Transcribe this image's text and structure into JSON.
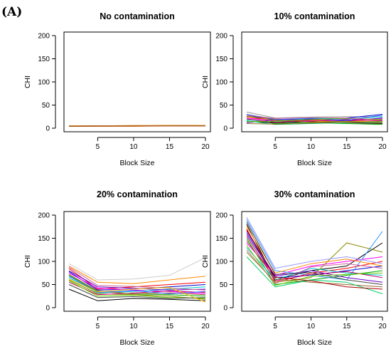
{
  "figure": {
    "label": "(A)"
  },
  "chart_data": [
    {
      "type": "line",
      "title": "No contamination",
      "xlabel": "Block Size",
      "ylabel": "CHI",
      "x": [
        1,
        5,
        10,
        15,
        20
      ],
      "xticks": [
        5,
        10,
        15,
        20
      ],
      "yticks": [
        0,
        50,
        100,
        150,
        200
      ],
      "ylim": [
        0,
        200
      ],
      "series": [
        {
          "color": "#000000",
          "values": [
            5,
            5,
            5,
            6,
            6
          ]
        },
        {
          "color": "#b8860b",
          "values": [
            4,
            4,
            5,
            5,
            5
          ]
        },
        {
          "color": "#cc6600",
          "values": [
            5,
            5,
            5,
            5,
            5
          ]
        },
        {
          "color": "#ff8c00",
          "values": [
            4,
            5,
            5,
            5,
            6
          ]
        },
        {
          "color": "#8b4513",
          "values": [
            5,
            5,
            5,
            6,
            5
          ]
        },
        {
          "color": "#d2691e",
          "values": [
            4,
            4,
            4,
            5,
            5
          ]
        },
        {
          "color": "#e69500",
          "values": [
            5,
            5,
            6,
            6,
            6
          ]
        },
        {
          "color": "#a0522d",
          "values": [
            4,
            5,
            5,
            5,
            5
          ]
        }
      ]
    },
    {
      "type": "line",
      "title": "10% contamination",
      "xlabel": "Block Size",
      "ylabel": "CHI",
      "x": [
        1,
        5,
        10,
        15,
        20
      ],
      "xticks": [
        5,
        10,
        15,
        20
      ],
      "yticks": [
        0,
        50,
        100,
        150,
        200
      ],
      "ylim": [
        0,
        200
      ],
      "series": [
        {
          "color": "#999999",
          "values": [
            35,
            22,
            24,
            25,
            24
          ]
        },
        {
          "color": "#0000cc",
          "values": [
            28,
            18,
            20,
            22,
            30
          ]
        },
        {
          "color": "#ff0000",
          "values": [
            25,
            15,
            18,
            16,
            18
          ]
        },
        {
          "color": "#00aa00",
          "values": [
            20,
            10,
            12,
            10,
            8
          ]
        },
        {
          "color": "#000000",
          "values": [
            15,
            12,
            14,
            12,
            10
          ]
        },
        {
          "color": "#ff00ff",
          "values": [
            22,
            16,
            15,
            18,
            20
          ]
        },
        {
          "color": "#00cccc",
          "values": [
            18,
            14,
            22,
            20,
            25
          ]
        },
        {
          "color": "#ff8800",
          "values": [
            24,
            20,
            16,
            14,
            15
          ]
        },
        {
          "color": "#6600cc",
          "values": [
            12,
            18,
            18,
            16,
            22
          ]
        },
        {
          "color": "#888800",
          "values": [
            26,
            17,
            13,
            15,
            12
          ]
        },
        {
          "color": "#00cc66",
          "values": [
            16,
            8,
            10,
            12,
            14
          ]
        },
        {
          "color": "#cc0066",
          "values": [
            20,
            13,
            17,
            19,
            16
          ]
        },
        {
          "color": "#3366ff",
          "values": [
            30,
            19,
            21,
            17,
            28
          ]
        },
        {
          "color": "#996633",
          "values": [
            10,
            9,
            11,
            13,
            11
          ]
        },
        {
          "color": "#66cc00",
          "values": [
            14,
            15,
            19,
            21,
            19
          ]
        },
        {
          "color": "#cc6699",
          "values": [
            28,
            21,
            23,
            22,
            17
          ]
        }
      ]
    },
    {
      "type": "line",
      "title": "20% contamination",
      "xlabel": "Block Size",
      "ylabel": "CHI",
      "x": [
        1,
        5,
        10,
        15,
        20
      ],
      "xticks": [
        5,
        10,
        15,
        20
      ],
      "yticks": [
        0,
        50,
        100,
        150,
        200
      ],
      "ylim": [
        0,
        200
      ],
      "series": [
        {
          "color": "#cccccc",
          "values": [
            95,
            60,
            62,
            70,
            108
          ]
        },
        {
          "color": "#ff8800",
          "values": [
            90,
            55,
            52,
            60,
            68
          ]
        },
        {
          "color": "#ff0000",
          "values": [
            85,
            40,
            45,
            50,
            55
          ]
        },
        {
          "color": "#0000cc",
          "values": [
            78,
            38,
            40,
            45,
            50
          ]
        },
        {
          "color": "#00aa00",
          "values": [
            70,
            35,
            30,
            28,
            25
          ]
        },
        {
          "color": "#000000",
          "values": [
            40,
            15,
            20,
            18,
            15
          ]
        },
        {
          "color": "#ff00ff",
          "values": [
            75,
            42,
            38,
            35,
            30
          ]
        },
        {
          "color": "#00cccc",
          "values": [
            65,
            32,
            35,
            40,
            45
          ]
        },
        {
          "color": "#888800",
          "values": [
            60,
            30,
            28,
            25,
            18
          ]
        },
        {
          "color": "#6600cc",
          "values": [
            80,
            45,
            42,
            38,
            40
          ]
        },
        {
          "color": "#cc0066",
          "values": [
            55,
            28,
            32,
            36,
            33
          ]
        },
        {
          "color": "#996633",
          "values": [
            72,
            36,
            30,
            32,
            28
          ]
        },
        {
          "color": "#3366ff",
          "values": [
            68,
            33,
            37,
            30,
            35
          ]
        },
        {
          "color": "#66cc00",
          "values": [
            58,
            25,
            27,
            22,
            20
          ]
        },
        {
          "color": "#cc6699",
          "values": [
            88,
            48,
            46,
            42,
            38
          ]
        },
        {
          "color": "#444444",
          "values": [
            50,
            22,
            24,
            20,
            22
          ]
        },
        {
          "color": "#ffcc00",
          "values": [
            62,
            34,
            40,
            44,
            12
          ]
        }
      ]
    },
    {
      "type": "line",
      "title": "30% contamination",
      "xlabel": "Block Size",
      "ylabel": "CHI",
      "x": [
        1,
        5,
        10,
        15,
        20
      ],
      "xticks": [
        5,
        10,
        15,
        20
      ],
      "yticks": [
        0,
        50,
        100,
        150,
        200
      ],
      "ylim": [
        0,
        200
      ],
      "series": [
        {
          "color": "#000000",
          "values": [
            180,
            60,
            80,
            90,
            140
          ]
        },
        {
          "color": "#ff0000",
          "values": [
            170,
            55,
            75,
            85,
            100
          ]
        },
        {
          "color": "#0000cc",
          "values": [
            160,
            65,
            70,
            80,
            90
          ]
        },
        {
          "color": "#00aa00",
          "values": [
            150,
            50,
            60,
            70,
            80
          ]
        },
        {
          "color": "#ff00ff",
          "values": [
            140,
            70,
            90,
            100,
            110
          ]
        },
        {
          "color": "#00cccc",
          "values": [
            130,
            60,
            85,
            75,
            70
          ]
        },
        {
          "color": "#888800",
          "values": [
            120,
            55,
            65,
            140,
            120
          ]
        },
        {
          "color": "#3399ff",
          "values": [
            190,
            80,
            70,
            60,
            165
          ]
        },
        {
          "color": "#ff8800",
          "values": [
            175,
            75,
            95,
            105,
            90
          ]
        },
        {
          "color": "#6600cc",
          "values": [
            165,
            68,
            80,
            65,
            55
          ]
        },
        {
          "color": "#cc0066",
          "values": [
            155,
            58,
            72,
            78,
            65
          ]
        },
        {
          "color": "#996633",
          "values": [
            145,
            62,
            55,
            50,
            45
          ]
        },
        {
          "color": "#66cc00",
          "values": [
            135,
            48,
            68,
            72,
            75
          ]
        },
        {
          "color": "#cc6699",
          "values": [
            125,
            52,
            88,
            95,
            85
          ]
        },
        {
          "color": "#444444",
          "values": [
            185,
            72,
            76,
            60,
            50
          ]
        },
        {
          "color": "#00cc66",
          "values": [
            110,
            45,
            60,
            55,
            30
          ]
        },
        {
          "color": "#9999ff",
          "values": [
            195,
            85,
            100,
            110,
            95
          ]
        },
        {
          "color": "#aa0000",
          "values": [
            168,
            66,
            58,
            45,
            40
          ]
        }
      ]
    }
  ]
}
